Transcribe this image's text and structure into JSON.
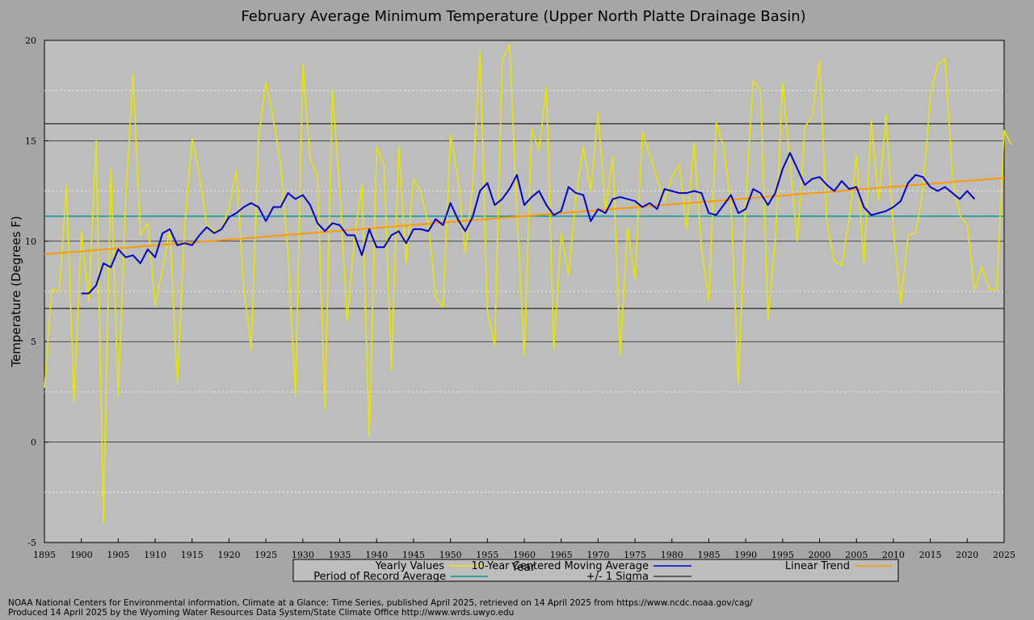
{
  "chart_data": {
    "type": "line",
    "title": "February Average Minimum Temperature (Upper North Platte Drainage Basin)",
    "xlabel": "Year",
    "ylabel": "Temperature (Degrees F)",
    "xlim": [
      1895,
      2025
    ],
    "ylim": [
      -5,
      20
    ],
    "x_ticks": [
      1895,
      1900,
      1905,
      1910,
      1915,
      1920,
      1925,
      1930,
      1935,
      1940,
      1945,
      1950,
      1955,
      1960,
      1965,
      1970,
      1975,
      1980,
      1985,
      1990,
      1995,
      2000,
      2005,
      2010,
      2015,
      2020,
      2025
    ],
    "y_ticks": [
      -5,
      0,
      5,
      10,
      15,
      20
    ],
    "grid": true,
    "legend_placement": "bottom",
    "series": [
      {
        "name": "Yearly Values",
        "color": "#e6e600",
        "x_start": 1895,
        "values": [
          2.7,
          7.6,
          7.5,
          12.8,
          2.0,
          10.5,
          7.0,
          15.0,
          -4.0,
          13.6,
          2.3,
          12.0,
          18.3,
          10.3,
          10.9,
          6.8,
          8.6,
          10.6,
          3.0,
          10.8,
          15.1,
          13.3,
          10.8,
          10.5,
          10.6,
          11.7,
          13.5,
          7.7,
          4.6,
          15.1,
          17.9,
          16.1,
          13.8,
          9.3,
          2.3,
          18.8,
          14.1,
          13.2,
          1.6,
          17.6,
          12.6,
          6.0,
          10.2,
          12.8,
          0.3,
          14.7,
          13.8,
          3.6,
          14.7,
          8.9,
          13.1,
          12.4,
          10.9,
          7.2,
          6.7,
          15.3,
          13.2,
          9.4,
          12.8,
          19.4,
          6.5,
          4.8,
          19.0,
          19.8,
          11.5,
          4.3,
          15.6,
          14.5,
          17.7,
          4.6,
          10.4,
          8.3,
          12.3,
          14.7,
          12.5,
          16.4,
          11.5,
          14.2,
          4.3,
          10.7,
          8.1,
          15.4,
          14.3,
          13.1,
          12.0,
          13.2,
          13.8,
          10.6,
          14.9,
          9.7,
          7.0,
          15.9,
          14.7,
          11.8,
          2.9,
          12.0,
          18.0,
          17.5,
          6.1,
          10.0,
          17.9,
          13.8,
          10.0,
          15.7,
          16.2,
          19.0,
          10.8,
          9.0,
          8.8,
          11.1,
          14.3,
          8.9,
          16.0,
          12.0,
          16.3,
          10.6,
          6.9,
          10.3,
          10.4,
          12.5,
          17.2,
          18.8,
          19.1,
          13.2,
          11.3,
          10.8,
          7.6,
          8.7,
          7.6,
          7.6,
          15.5,
          14.8
        ]
      },
      {
        "name": "10-Year Centered Moving Average",
        "color": "#0000cc",
        "x_start": 1900,
        "values": [
          7.4,
          7.4,
          7.8,
          8.9,
          8.7,
          9.6,
          9.2,
          9.3,
          8.9,
          9.6,
          9.2,
          10.4,
          10.6,
          9.8,
          9.9,
          9.8,
          10.3,
          10.7,
          10.4,
          10.6,
          11.2,
          11.4,
          11.7,
          11.9,
          11.7,
          11.0,
          11.7,
          11.7,
          12.4,
          12.1,
          12.3,
          11.8,
          10.9,
          10.5,
          10.9,
          10.8,
          10.3,
          10.3,
          9.3,
          10.6,
          9.7,
          9.7,
          10.3,
          10.5,
          9.9,
          10.6,
          10.6,
          10.5,
          11.1,
          10.8,
          11.9,
          11.1,
          10.5,
          11.2,
          12.5,
          12.9,
          11.8,
          12.1,
          12.6,
          13.3,
          11.8,
          12.2,
          12.5,
          11.8,
          11.3,
          11.5,
          12.7,
          12.4,
          12.3,
          11.0,
          11.6,
          11.4,
          12.1,
          12.2,
          12.1,
          12.0,
          11.7,
          11.9,
          11.6,
          12.6,
          12.5,
          12.4,
          12.4,
          12.5,
          12.4,
          11.4,
          11.3,
          11.8,
          12.3,
          11.4,
          11.6,
          12.6,
          12.4,
          11.8,
          12.4,
          13.6,
          14.4,
          13.6,
          12.8,
          13.1,
          13.2,
          12.8,
          12.5,
          13.0,
          12.6,
          12.7,
          11.7,
          11.3,
          11.4,
          11.5,
          11.7,
          12.0,
          12.9,
          13.3,
          13.2,
          12.7,
          12.5,
          12.7,
          12.4,
          12.1,
          12.5,
          12.1
        ]
      },
      {
        "name": "Linear Trend",
        "color": "#ff9900",
        "x": [
          1895,
          2025
        ],
        "values": [
          9.35,
          13.15
        ]
      },
      {
        "name": "Period of Record Average",
        "color": "#009999",
        "x": [
          1895,
          2025
        ],
        "values": [
          11.25,
          11.25
        ]
      },
      {
        "name": "+/- 1 Sigma",
        "color": "#000000",
        "x": [
          1895,
          2025
        ],
        "values_upper": [
          15.85,
          15.85
        ],
        "values_lower": [
          6.65,
          6.65
        ]
      }
    ]
  },
  "legend": {
    "yearly_label": "Yearly Values",
    "moving_avg_label": "10-Year Centered Moving Average",
    "trend_label": "Linear Trend",
    "por_avg_label": "Period of Record Average",
    "sigma_label": "+/- 1 Sigma"
  },
  "credits": {
    "line1": "NOAA National Centers for Environmental information, Climate at a Glance: Time Series, published April 2025, retrieved on 14 April 2025 from https://www.ncdc.noaa.gov/cag/",
    "line2": "Produced 14 April 2025 by the Wyoming Water Resources Data System/State Climate Office http://www.wrds.uwyo.edu"
  }
}
